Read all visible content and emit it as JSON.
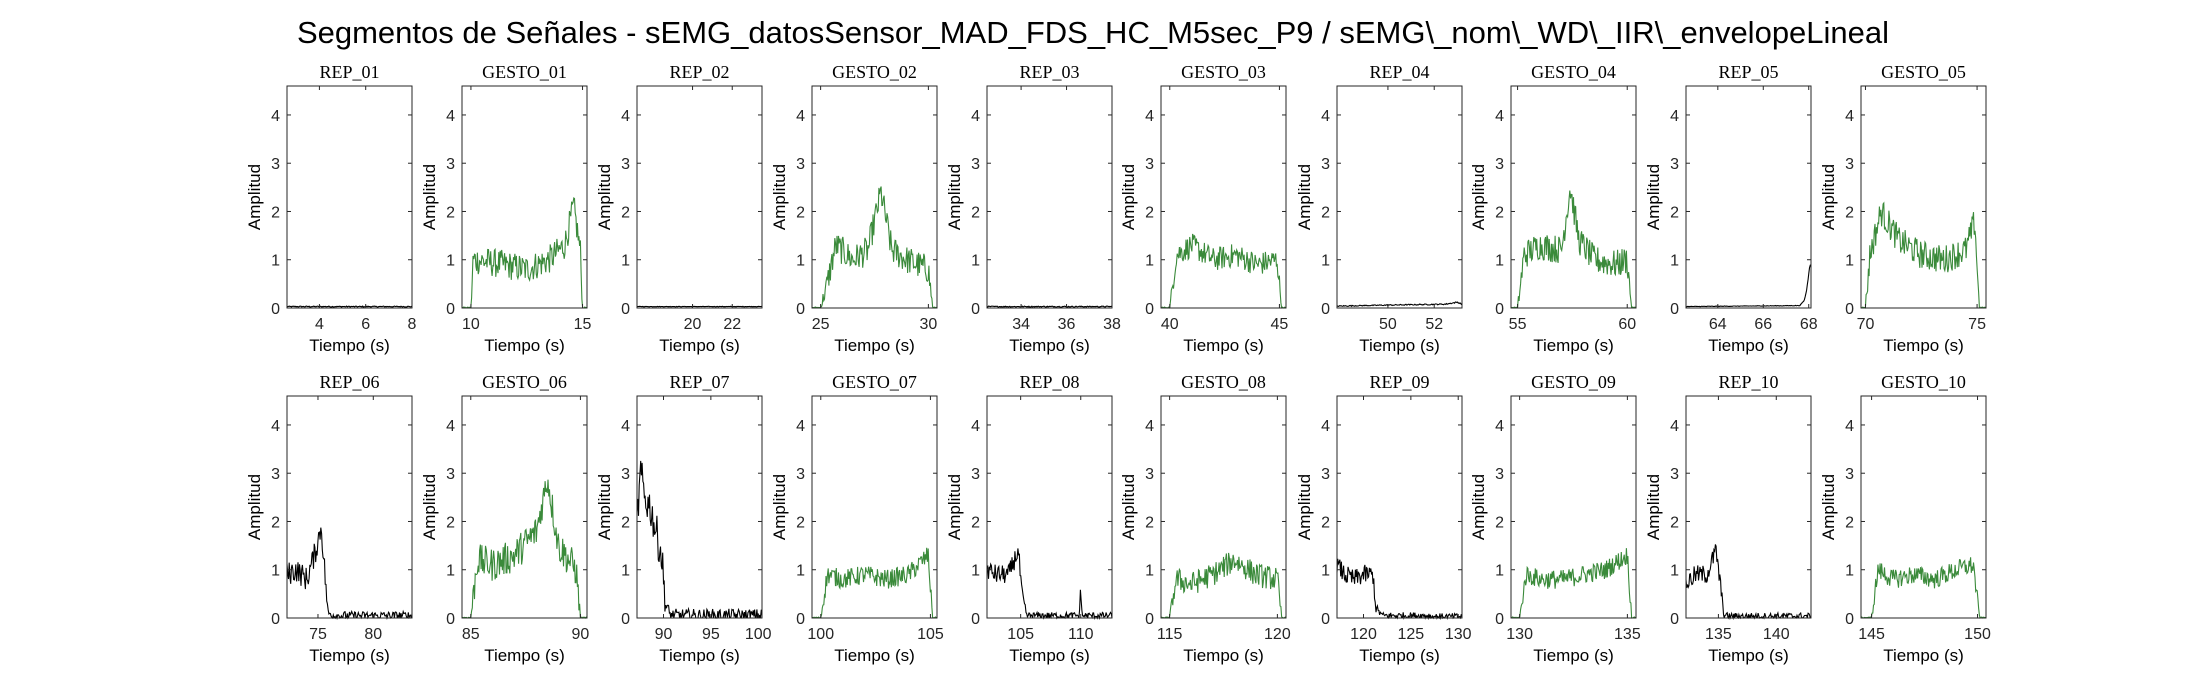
{
  "figure_title": "Segmentos de Señales - sEMG_datosSensor_MAD_FDS_HC_M5sec_P9 / sEMG\\_nom\\_WD\\_IIR\\_envelopeLineal",
  "colors": {
    "rep": "#000000",
    "gesto": "#3a8a3a"
  },
  "chart_data": [
    {
      "type": "line",
      "title": "REP_01",
      "xlabel": "Tiempo (s)",
      "ylabel": "Amplitud",
      "xlim": [
        2.6,
        8
      ],
      "ylim": [
        0,
        4.6
      ],
      "xticks": [
        4,
        6,
        8
      ],
      "yticks": [
        0,
        1,
        2,
        3,
        4
      ],
      "color": "rep",
      "series": [
        {
          "x": [
            2.6,
            8
          ],
          "y": [
            0.02,
            0.02
          ],
          "base": 0.02,
          "noise": 0.015
        }
      ]
    },
    {
      "type": "line",
      "title": "GESTO_01",
      "xlabel": "Tiempo (s)",
      "ylabel": "Amplitud",
      "xlim": [
        9.6,
        15.2
      ],
      "ylim": [
        0,
        4.6
      ],
      "xticks": [
        10,
        15
      ],
      "yticks": [
        0,
        1,
        2,
        3,
        4
      ],
      "color": "gesto",
      "series": [
        {
          "x": [
            9.6,
            10.0,
            10.1,
            11.5,
            12.5,
            13.5,
            14.2,
            14.6,
            14.9,
            15.0,
            15.2
          ],
          "y": [
            0,
            0,
            1.0,
            0.9,
            0.8,
            1.0,
            1.3,
            2.1,
            1.2,
            0,
            0
          ],
          "noise": 0.3
        }
      ]
    },
    {
      "type": "line",
      "title": "REP_02",
      "xlabel": "Tiempo (s)",
      "ylabel": "Amplitud",
      "xlim": [
        17.2,
        23.5
      ],
      "ylim": [
        0,
        4.6
      ],
      "xticks": [
        20,
        22
      ],
      "yticks": [
        0,
        1,
        2,
        3,
        4
      ],
      "color": "rep",
      "series": [
        {
          "x": [
            17.2,
            23.5
          ],
          "y": [
            0.03,
            0.03
          ],
          "noise": 0.015
        }
      ]
    },
    {
      "type": "line",
      "title": "GESTO_02",
      "xlabel": "Tiempo (s)",
      "ylabel": "Amplitud",
      "xlim": [
        24.6,
        30.4
      ],
      "ylim": [
        0,
        4.6
      ],
      "xticks": [
        25,
        30
      ],
      "yticks": [
        0,
        1,
        2,
        3,
        4
      ],
      "color": "gesto",
      "series": [
        {
          "x": [
            24.6,
            25.0,
            25.3,
            25.7,
            26.5,
            27.2,
            27.8,
            28.3,
            29.0,
            30.0,
            30.2,
            30.4
          ],
          "y": [
            0,
            0,
            0.5,
            1.3,
            1.0,
            1.2,
            2.4,
            1.2,
            1.0,
            0.8,
            0,
            0
          ],
          "noise": 0.3
        }
      ]
    },
    {
      "type": "line",
      "title": "REP_03",
      "xlabel": "Tiempo (s)",
      "ylabel": "Amplitud",
      "xlim": [
        32.5,
        38
      ],
      "ylim": [
        0,
        4.6
      ],
      "xticks": [
        34,
        36,
        38
      ],
      "yticks": [
        0,
        1,
        2,
        3,
        4
      ],
      "color": "rep",
      "series": [
        {
          "x": [
            32.5,
            38
          ],
          "y": [
            0.02,
            0.02
          ],
          "noise": 0.015
        }
      ]
    },
    {
      "type": "line",
      "title": "GESTO_03",
      "xlabel": "Tiempo (s)",
      "ylabel": "Amplitud",
      "xlim": [
        39.6,
        45.3
      ],
      "ylim": [
        0,
        4.6
      ],
      "xticks": [
        40,
        45
      ],
      "yticks": [
        0,
        1,
        2,
        3,
        4
      ],
      "color": "gesto",
      "series": [
        {
          "x": [
            39.6,
            40.0,
            40.3,
            41.0,
            42.0,
            43.0,
            44.0,
            44.9,
            45.1,
            45.3
          ],
          "y": [
            0,
            0,
            1.1,
            1.3,
            1.0,
            1.1,
            0.9,
            1.0,
            0,
            0
          ],
          "noise": 0.25
        }
      ]
    },
    {
      "type": "line",
      "title": "REP_04",
      "xlabel": "Tiempo (s)",
      "ylabel": "Amplitud",
      "xlim": [
        47.8,
        53.2
      ],
      "ylim": [
        0,
        4.6
      ],
      "xticks": [
        50,
        52
      ],
      "yticks": [
        0,
        1,
        2,
        3,
        4
      ],
      "color": "rep",
      "series": [
        {
          "x": [
            47.8,
            50,
            52.5,
            53.0,
            53.2
          ],
          "y": [
            0.04,
            0.06,
            0.08,
            0.12,
            0.08
          ],
          "noise": 0.03
        }
      ]
    },
    {
      "type": "line",
      "title": "GESTO_04",
      "xlabel": "Tiempo (s)",
      "ylabel": "Amplitud",
      "xlim": [
        54.7,
        60.4
      ],
      "ylim": [
        0,
        4.6
      ],
      "xticks": [
        55,
        60
      ],
      "yticks": [
        0,
        1,
        2,
        3,
        4
      ],
      "color": "gesto",
      "series": [
        {
          "x": [
            54.7,
            55.0,
            55.3,
            56.0,
            57.0,
            57.4,
            57.8,
            58.5,
            59.5,
            60.0,
            60.2,
            60.4
          ],
          "y": [
            0,
            0,
            1.1,
            1.3,
            1.2,
            2.5,
            1.4,
            1.0,
            0.9,
            1.0,
            0,
            0
          ],
          "noise": 0.3
        }
      ]
    },
    {
      "type": "line",
      "title": "REP_05",
      "xlabel": "Tiempo (s)",
      "ylabel": "Amplitud",
      "xlim": [
        62.6,
        68.1
      ],
      "ylim": [
        0,
        4.6
      ],
      "xticks": [
        64,
        66,
        68
      ],
      "yticks": [
        0,
        1,
        2,
        3,
        4
      ],
      "color": "rep",
      "series": [
        {
          "x": [
            62.6,
            67.6,
            67.8,
            67.9,
            68.0,
            68.05
          ],
          "y": [
            0.03,
            0.05,
            0.15,
            0.35,
            0.7,
            0.9
          ],
          "noise": 0.015
        }
      ]
    },
    {
      "type": "line",
      "title": "GESTO_05",
      "xlabel": "Tiempo (s)",
      "ylabel": "Amplitud",
      "xlim": [
        69.8,
        75.4
      ],
      "ylim": [
        0,
        4.6
      ],
      "xticks": [
        70,
        75
      ],
      "yticks": [
        0,
        1,
        2,
        3,
        4
      ],
      "color": "gesto",
      "series": [
        {
          "x": [
            69.8,
            70.0,
            70.2,
            70.7,
            71.5,
            72.5,
            73.5,
            74.5,
            74.9,
            75.1,
            75.4
          ],
          "y": [
            0,
            0,
            1.1,
            2.0,
            1.4,
            1.1,
            1.0,
            1.2,
            1.8,
            0,
            0
          ],
          "noise": 0.3
        }
      ]
    },
    {
      "type": "line",
      "title": "REP_06",
      "xlabel": "Tiempo (s)",
      "ylabel": "Amplitud",
      "xlim": [
        72.2,
        83.5
      ],
      "ylim": [
        0,
        4.6
      ],
      "xticks": [
        75,
        80
      ],
      "yticks": [
        0,
        1,
        2,
        3,
        4
      ],
      "color": "rep",
      "series": [
        {
          "x": [
            72.2,
            73.0,
            74.0,
            74.8,
            75.3,
            75.6,
            75.9,
            76.5,
            83.5
          ],
          "y": [
            0.9,
            1.0,
            0.8,
            1.4,
            1.9,
            1.0,
            0.1,
            0.05,
            0.05
          ],
          "noise": 0.25
        }
      ]
    },
    {
      "type": "line",
      "title": "GESTO_06",
      "xlabel": "Tiempo (s)",
      "ylabel": "Amplitud",
      "xlim": [
        84.6,
        90.3
      ],
      "ylim": [
        0,
        4.6
      ],
      "xticks": [
        85,
        90
      ],
      "yticks": [
        0,
        1,
        2,
        3,
        4
      ],
      "color": "gesto",
      "series": [
        {
          "x": [
            84.6,
            85.0,
            85.3,
            86.0,
            87.0,
            88.0,
            88.5,
            89.0,
            89.8,
            90.0,
            90.3
          ],
          "y": [
            0,
            0,
            1.2,
            1.1,
            1.3,
            1.8,
            2.9,
            1.5,
            1.0,
            0,
            0
          ],
          "noise": 0.35
        }
      ]
    },
    {
      "type": "line",
      "title": "REP_07",
      "xlabel": "Tiempo (s)",
      "ylabel": "Amplitud",
      "xlim": [
        87.2,
        100.4
      ],
      "ylim": [
        0,
        4.6
      ],
      "xticks": [
        90,
        95,
        100
      ],
      "yticks": [
        0,
        1,
        2,
        3,
        4
      ],
      "color": "rep",
      "series": [
        {
          "x": [
            87.2,
            87.6,
            88.0,
            88.6,
            89.2,
            89.8,
            90.2,
            90.6,
            91.0,
            100.4
          ],
          "y": [
            2.0,
            3.0,
            2.5,
            2.3,
            1.8,
            1.3,
            0.3,
            0.08,
            0.05,
            0.05
          ],
          "noise": 0.4
        }
      ]
    },
    {
      "type": "line",
      "title": "GESTO_07",
      "xlabel": "Tiempo (s)",
      "ylabel": "Amplitud",
      "xlim": [
        99.6,
        105.3
      ],
      "ylim": [
        0,
        4.6
      ],
      "xticks": [
        100,
        105
      ],
      "yticks": [
        0,
        1,
        2,
        3,
        4
      ],
      "color": "gesto",
      "series": [
        {
          "x": [
            99.6,
            100.0,
            100.3,
            101.0,
            102.0,
            103.0,
            104.0,
            104.9,
            105.1,
            105.3
          ],
          "y": [
            0,
            0,
            0.9,
            0.8,
            0.9,
            0.8,
            0.9,
            1.3,
            0,
            0
          ],
          "noise": 0.2
        }
      ]
    },
    {
      "type": "line",
      "title": "REP_08",
      "xlabel": "Tiempo (s)",
      "ylabel": "Amplitud",
      "xlim": [
        102.2,
        112.6
      ],
      "ylim": [
        0,
        4.6
      ],
      "xticks": [
        105,
        110
      ],
      "yticks": [
        0,
        1,
        2,
        3,
        4
      ],
      "color": "rep",
      "series": [
        {
          "x": [
            102.2,
            103.0,
            104.0,
            104.8,
            105.1,
            105.5,
            106.0,
            109.9,
            110.0,
            110.1,
            112.6
          ],
          "y": [
            1.0,
            0.9,
            0.9,
            1.4,
            0.5,
            0.05,
            0.05,
            0.05,
            0.75,
            0.05,
            0.05
          ],
          "noise": 0.2
        }
      ]
    },
    {
      "type": "line",
      "title": "GESTO_08",
      "xlabel": "Tiempo (s)",
      "ylabel": "Amplitud",
      "xlim": [
        114.6,
        120.4
      ],
      "ylim": [
        0,
        4.6
      ],
      "xticks": [
        115,
        120
      ],
      "yticks": [
        0,
        1,
        2,
        3,
        4
      ],
      "color": "gesto",
      "series": [
        {
          "x": [
            114.6,
            115.0,
            115.3,
            116.0,
            117.0,
            118.0,
            119.0,
            120.0,
            120.2,
            120.4
          ],
          "y": [
            0,
            0,
            0.8,
            0.7,
            0.9,
            1.2,
            0.9,
            0.8,
            0,
            0
          ],
          "noise": 0.25
        }
      ]
    },
    {
      "type": "line",
      "title": "REP_09",
      "xlabel": "Tiempo (s)",
      "ylabel": "Amplitud",
      "xlim": [
        117.2,
        130.4
      ],
      "ylim": [
        0,
        4.6
      ],
      "xticks": [
        120,
        125,
        130
      ],
      "yticks": [
        0,
        1,
        2,
        3,
        4
      ],
      "color": "rep",
      "series": [
        {
          "x": [
            117.2,
            118.0,
            119.0,
            120.0,
            121.0,
            121.3,
            122.0,
            127.0,
            127.1,
            130.4
          ],
          "y": [
            1.1,
            0.9,
            0.8,
            0.9,
            0.9,
            0.2,
            0.05,
            0.05,
            0.03,
            0.03
          ],
          "noise": 0.2
        }
      ]
    },
    {
      "type": "line",
      "title": "GESTO_09",
      "xlabel": "Tiempo (s)",
      "ylabel": "Amplitud",
      "xlim": [
        129.6,
        135.4
      ],
      "ylim": [
        0,
        4.6
      ],
      "xticks": [
        130,
        135
      ],
      "yticks": [
        0,
        1,
        2,
        3,
        4
      ],
      "color": "gesto",
      "series": [
        {
          "x": [
            129.6,
            130.0,
            130.3,
            131.0,
            132.0,
            133.0,
            134.0,
            135.0,
            135.2,
            135.4
          ],
          "y": [
            0,
            0,
            0.9,
            0.8,
            0.8,
            0.9,
            1.0,
            1.3,
            0,
            0
          ],
          "noise": 0.2
        }
      ]
    },
    {
      "type": "line",
      "title": "REP_10",
      "xlabel": "Tiempo (s)",
      "ylabel": "Amplitud",
      "xlim": [
        132.2,
        143
      ],
      "ylim": [
        0,
        4.6
      ],
      "xticks": [
        135,
        140
      ],
      "yticks": [
        0,
        1,
        2,
        3,
        4
      ],
      "color": "rep",
      "series": [
        {
          "x": [
            132.2,
            133.0,
            134.0,
            134.8,
            135.1,
            135.5,
            136.0,
            143.0
          ],
          "y": [
            0.7,
            0.9,
            0.9,
            1.4,
            0.8,
            0.05,
            0.04,
            0.04
          ],
          "noise": 0.2
        }
      ]
    },
    {
      "type": "line",
      "title": "GESTO_10",
      "xlabel": "Tiempo (s)",
      "ylabel": "Amplitud",
      "xlim": [
        144.5,
        150.4
      ],
      "ylim": [
        0,
        4.6
      ],
      "xticks": [
        145,
        150
      ],
      "yticks": [
        0,
        1,
        2,
        3,
        4
      ],
      "color": "gesto",
      "series": [
        {
          "x": [
            144.5,
            145.0,
            145.3,
            146.0,
            147.0,
            148.0,
            149.0,
            149.8,
            150.1,
            150.4
          ],
          "y": [
            0,
            0,
            1.0,
            0.8,
            0.9,
            0.8,
            1.0,
            1.1,
            0,
            0
          ],
          "noise": 0.2
        }
      ]
    }
  ]
}
